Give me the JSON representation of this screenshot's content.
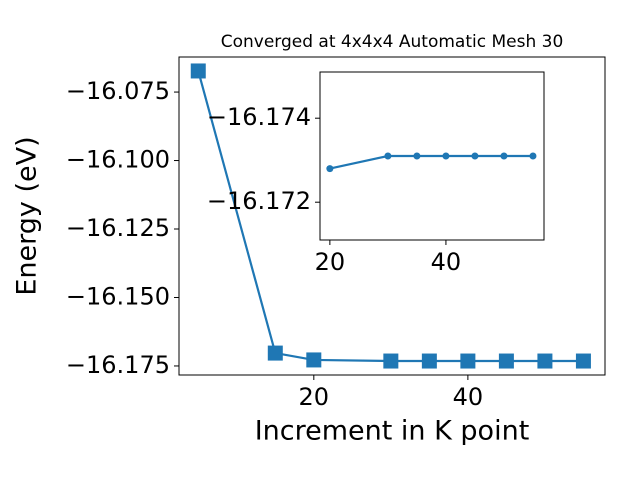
{
  "chart_data": [
    {
      "type": "line",
      "title": "Converged at 4x4x4 Automatic Mesh 30",
      "x_label": "Increment in K point",
      "y_label": "Energy (eV)",
      "x": [
        5,
        15,
        20,
        30,
        35,
        40,
        45,
        50,
        55
      ],
      "series": [
        {
          "name": "Energy",
          "color": "#1f77b4",
          "marker": "square",
          "values": [
            -16.0673,
            -16.1703,
            -16.1728,
            -16.1732,
            -16.1732,
            -16.1732,
            -16.1732,
            -16.1732,
            -16.1732
          ]
        }
      ],
      "xlim": [
        2.5,
        57.8
      ],
      "ylim": [
        -16.1783,
        -16.0622
      ],
      "xticks": [
        20,
        40
      ],
      "yticks": [
        {
          "value": -16.075,
          "label": "−16.075"
        },
        {
          "value": -16.1,
          "label": "−16.100"
        },
        {
          "value": -16.125,
          "label": "−16.125"
        },
        {
          "value": -16.15,
          "label": "−16.150"
        },
        {
          "value": -16.175,
          "label": "−16.175"
        }
      ]
    },
    {
      "type": "line",
      "x": [
        20,
        30,
        35,
        40,
        45,
        50,
        55
      ],
      "series": [
        {
          "name": "Energy",
          "color": "#1f77b4",
          "marker": "circle",
          "values": [
            -16.1728,
            -16.1731,
            -16.1731,
            -16.1731,
            -16.1731,
            -16.1731,
            -16.1731
          ]
        }
      ],
      "xlim": [
        18.3,
        56.9
      ],
      "ylim": [
        -16.1711,
        -16.1751
      ],
      "xticks": [
        20,
        40
      ],
      "yticks": [
        {
          "value": -16.174,
          "label": "−16.174"
        },
        {
          "value": -16.172,
          "label": "−16.172"
        }
      ]
    }
  ]
}
